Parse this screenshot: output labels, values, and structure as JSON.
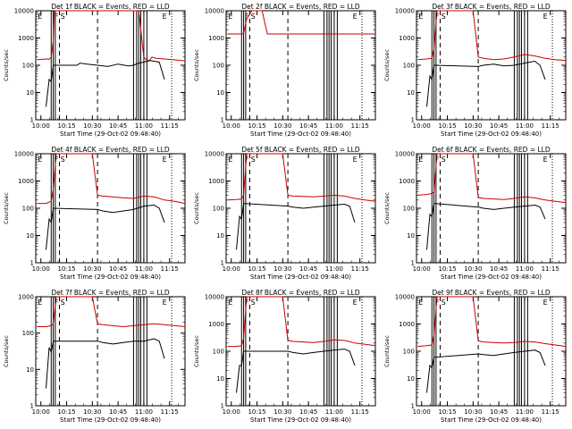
{
  "chart_data": [
    {
      "type": "line",
      "title": "Det 1f BLACK = Events, RED = LLD",
      "xlabel": "Start Time (29-Oct-02 09:48:40)",
      "ylabel": "Counts/sec",
      "yscale": "log",
      "ylim": [
        1,
        10000
      ],
      "xlim": [
        9.95,
        11.4
      ],
      "x_ticks": [
        "10:00",
        "10:15",
        "10:30",
        "10:45",
        "11:00",
        "11:15"
      ],
      "y_ticks": [
        "1",
        "10",
        "100",
        "1000",
        "10000"
      ],
      "text_marks": [
        "E",
        "F",
        "S"
      ],
      "series": [
        {
          "color": "#cc0000",
          "x": [
            9.96,
            10.05,
            10.08,
            10.1,
            10.12,
            10.13,
            10.16,
            10.2,
            10.24,
            10.28,
            10.35,
            10.45,
            10.55,
            10.65,
            10.75,
            10.85,
            10.95,
            11.0,
            11.03,
            11.05,
            11.08,
            11.12,
            11.2,
            11.28,
            11.36,
            11.4
          ],
          "y": [
            160,
            170,
            165,
            200,
            800,
            10000,
            10000,
            10000,
            10000,
            10000,
            10000,
            10000,
            10000,
            10000,
            10000,
            10000,
            10000,
            200,
            150,
            140,
            200,
            180,
            170,
            160,
            150,
            145
          ]
        },
        {
          "color": "#000000",
          "x": [
            10.05,
            10.08,
            10.1,
            10.12,
            10.35,
            10.38,
            10.45,
            10.55,
            10.65,
            10.75,
            10.85,
            10.9,
            10.95,
            11.0,
            11.05,
            11.1,
            11.15,
            11.2
          ],
          "y": [
            3,
            30,
            25,
            100,
            100,
            120,
            110,
            100,
            90,
            110,
            95,
            100,
            120,
            130,
            150,
            140,
            130,
            30
          ]
        }
      ]
    },
    {
      "type": "line",
      "title": "Det 2f BLACK = Events, RED = LLD",
      "xlabel": "Start Time (29-Oct-02 09:48:40)",
      "ylabel": "Counts/sec",
      "yscale": "log",
      "ylim": [
        1,
        10000
      ],
      "xlim": [
        9.95,
        11.4
      ],
      "x_ticks": [
        "10:00",
        "10:15",
        "10:30",
        "10:45",
        "11:00",
        "11:15"
      ],
      "y_ticks": [
        "1",
        "10",
        "100",
        "1000",
        "10000"
      ],
      "text_marks": [
        "E",
        "F",
        "S"
      ],
      "series": [
        {
          "color": "#cc0000",
          "x": [
            9.96,
            10.05,
            10.1,
            10.12,
            10.15,
            10.2,
            10.25,
            10.3,
            10.35,
            10.4,
            10.5,
            10.6,
            10.7,
            10.8,
            10.9,
            11.0,
            11.1,
            11.2,
            11.3,
            11.4
          ],
          "y": [
            1400,
            1400,
            1400,
            1500,
            5000,
            10000,
            10000,
            10000,
            1400,
            1400,
            1400,
            1400,
            1400,
            1400,
            1400,
            1400,
            1400,
            1400,
            1400,
            1400
          ]
        }
      ]
    },
    {
      "type": "line",
      "title": "Det 3f BLACK = Events, RED = LLD",
      "xlabel": "Start Time (29-Oct-02 09:48:40)",
      "ylabel": "Counts/sec",
      "yscale": "log",
      "ylim": [
        1,
        10000
      ],
      "xlim": [
        9.95,
        11.4
      ],
      "x_ticks": [
        "10:00",
        "10:15",
        "10:30",
        "10:45",
        "11:00",
        "11:15"
      ],
      "y_ticks": [
        "1",
        "10",
        "100",
        "1000",
        "10000"
      ],
      "text_marks": [
        "E",
        "F",
        "S"
      ],
      "series": [
        {
          "color": "#cc0000",
          "x": [
            9.96,
            10.05,
            10.1,
            10.12,
            10.15,
            10.2,
            10.3,
            10.4,
            10.5,
            10.55,
            10.6,
            10.7,
            10.8,
            10.9,
            11.0,
            11.1,
            11.2,
            11.3,
            11.4
          ],
          "y": [
            160,
            170,
            180,
            400,
            10000,
            10000,
            10000,
            10000,
            10000,
            200,
            180,
            160,
            170,
            200,
            250,
            220,
            180,
            160,
            150
          ]
        },
        {
          "color": "#000000",
          "x": [
            10.05,
            10.08,
            10.1,
            10.12,
            10.55,
            10.6,
            10.7,
            10.8,
            10.9,
            11.0,
            11.1,
            11.15,
            11.2
          ],
          "y": [
            3,
            40,
            30,
            100,
            90,
            100,
            110,
            95,
            100,
            120,
            140,
            100,
            30
          ]
        }
      ]
    },
    {
      "type": "line",
      "title": "Det 4f BLACK = Events, RED = LLD",
      "xlabel": "Start Time (29-Oct-02 09:48:40)",
      "ylabel": "Counts/sec",
      "yscale": "log",
      "ylim": [
        1,
        10000
      ],
      "xlim": [
        9.95,
        11.4
      ],
      "x_ticks": [
        "10:00",
        "10:15",
        "10:30",
        "10:45",
        "11:00",
        "11:15"
      ],
      "y_ticks": [
        "1",
        "10",
        "100",
        "1000",
        "10000"
      ],
      "text_marks": [
        "E",
        "F",
        "S"
      ],
      "series": [
        {
          "color": "#cc0000",
          "x": [
            9.96,
            10.05,
            10.1,
            10.12,
            10.15,
            10.2,
            10.3,
            10.4,
            10.5,
            10.55,
            10.6,
            10.7,
            10.8,
            10.9,
            11.0,
            11.1,
            11.2,
            11.3,
            11.4
          ],
          "y": [
            150,
            150,
            180,
            500,
            10000,
            10000,
            10000,
            10000,
            10000,
            300,
            280,
            260,
            240,
            230,
            280,
            260,
            200,
            180,
            150
          ]
        },
        {
          "color": "#000000",
          "x": [
            10.05,
            10.08,
            10.1,
            10.12,
            10.55,
            10.6,
            10.7,
            10.8,
            10.9,
            11.0,
            11.1,
            11.15,
            11.2
          ],
          "y": [
            3,
            40,
            30,
            100,
            90,
            80,
            70,
            80,
            90,
            120,
            130,
            100,
            30
          ]
        }
      ]
    },
    {
      "type": "line",
      "title": "Det 5f BLACK = Events, RED = LLD",
      "xlabel": "Start Time (29-Oct-02 09:48:40)",
      "ylabel": "Counts/sec",
      "yscale": "log",
      "ylim": [
        1,
        10000
      ],
      "xlim": [
        9.95,
        11.4
      ],
      "x_ticks": [
        "10:00",
        "10:15",
        "10:30",
        "10:45",
        "11:00",
        "11:15"
      ],
      "y_ticks": [
        "1",
        "10",
        "100",
        "1000",
        "10000"
      ],
      "text_marks": [
        "E",
        "F",
        "S"
      ],
      "series": [
        {
          "color": "#cc0000",
          "x": [
            9.96,
            10.05,
            10.1,
            10.12,
            10.15,
            10.2,
            10.3,
            10.4,
            10.5,
            10.55,
            10.6,
            10.7,
            10.8,
            10.9,
            11.0,
            11.1,
            11.2,
            11.3,
            11.4
          ],
          "y": [
            200,
            210,
            220,
            300,
            10000,
            10000,
            10000,
            10000,
            10000,
            300,
            280,
            270,
            260,
            280,
            300,
            280,
            230,
            200,
            180
          ]
        },
        {
          "color": "#000000",
          "x": [
            10.05,
            10.08,
            10.1,
            10.12,
            10.55,
            10.6,
            10.7,
            10.8,
            10.9,
            11.0,
            11.1,
            11.15,
            11.2
          ],
          "y": [
            3,
            50,
            40,
            150,
            120,
            110,
            100,
            110,
            120,
            130,
            140,
            120,
            30
          ]
        }
      ]
    },
    {
      "type": "line",
      "title": "Det 6f BLACK = Events, RED = LLD",
      "xlabel": "Start Time (29-Oct-02 09:48:40)",
      "ylabel": "Counts/sec",
      "yscale": "log",
      "ylim": [
        1,
        10000
      ],
      "xlim": [
        9.95,
        11.4
      ],
      "x_ticks": [
        "10:00",
        "10:15",
        "10:30",
        "10:45",
        "11:00",
        "11:15"
      ],
      "y_ticks": [
        "1",
        "10",
        "100",
        "1000",
        "10000"
      ],
      "text_marks": [
        "E",
        "F",
        "S"
      ],
      "series": [
        {
          "color": "#cc0000",
          "x": [
            9.96,
            10.05,
            10.1,
            10.12,
            10.15,
            10.2,
            10.3,
            10.4,
            10.5,
            10.55,
            10.6,
            10.7,
            10.8,
            10.9,
            11.0,
            11.1,
            11.2,
            11.3,
            11.4
          ],
          "y": [
            300,
            320,
            350,
            400,
            10000,
            10000,
            10000,
            10000,
            10000,
            250,
            230,
            220,
            210,
            230,
            260,
            240,
            200,
            180,
            160
          ]
        },
        {
          "color": "#000000",
          "x": [
            10.05,
            10.08,
            10.1,
            10.12,
            10.55,
            10.6,
            10.7,
            10.8,
            10.9,
            11.0,
            11.1,
            11.15,
            11.2
          ],
          "y": [
            3,
            60,
            50,
            150,
            110,
            100,
            90,
            100,
            110,
            120,
            130,
            110,
            40
          ]
        }
      ]
    },
    {
      "type": "line",
      "title": "Det 7f BLACK = Events, RED = LLD",
      "xlabel": "Start Time (29-Oct-02 09:48:40)",
      "ylabel": "Counts/sec",
      "yscale": "log",
      "ylim": [
        1,
        1000
      ],
      "xlim": [
        9.95,
        11.4
      ],
      "x_ticks": [
        "10:00",
        "10:15",
        "10:30",
        "10:45",
        "11:00",
        "11:15"
      ],
      "y_ticks": [
        "1",
        "10",
        "100",
        "1000"
      ],
      "text_marks": [
        "E",
        "F",
        "S"
      ],
      "series": [
        {
          "color": "#cc0000",
          "x": [
            9.96,
            10.05,
            10.1,
            10.12,
            10.15,
            10.2,
            10.3,
            10.4,
            10.5,
            10.55,
            10.6,
            10.7,
            10.8,
            10.9,
            11.0,
            11.1,
            11.2,
            11.3,
            11.4
          ],
          "y": [
            150,
            150,
            160,
            180,
            1000,
            1000,
            1000,
            1000,
            1000,
            180,
            170,
            160,
            150,
            160,
            170,
            180,
            170,
            160,
            150
          ]
        },
        {
          "color": "#000000",
          "x": [
            10.05,
            10.08,
            10.1,
            10.12,
            10.55,
            10.6,
            10.7,
            10.8,
            10.9,
            11.0,
            11.1,
            11.15,
            11.2
          ],
          "y": [
            3,
            40,
            30,
            60,
            60,
            55,
            50,
            55,
            60,
            60,
            70,
            60,
            20
          ]
        }
      ]
    },
    {
      "type": "line",
      "title": "Det 8f BLACK = Events, RED = LLD",
      "xlabel": "Start Time (29-Oct-02 09:48:40)",
      "ylabel": "Counts/sec",
      "yscale": "log",
      "ylim": [
        1,
        10000
      ],
      "xlim": [
        9.95,
        11.4
      ],
      "x_ticks": [
        "10:00",
        "10:15",
        "10:30",
        "10:45",
        "11:00",
        "11:15"
      ],
      "y_ticks": [
        "1",
        "10",
        "100",
        "1000",
        "10000"
      ],
      "text_marks": [
        "E",
        "F",
        "S"
      ],
      "series": [
        {
          "color": "#cc0000",
          "x": [
            9.96,
            10.05,
            10.1,
            10.12,
            10.15,
            10.2,
            10.3,
            10.4,
            10.5,
            10.55,
            10.6,
            10.7,
            10.8,
            10.9,
            11.0,
            11.1,
            11.2,
            11.3,
            11.4
          ],
          "y": [
            150,
            150,
            160,
            300,
            10000,
            10000,
            10000,
            10000,
            10000,
            250,
            230,
            220,
            210,
            230,
            260,
            250,
            200,
            180,
            160
          ]
        },
        {
          "color": "#000000",
          "x": [
            10.05,
            10.08,
            10.1,
            10.12,
            10.55,
            10.6,
            10.7,
            10.8,
            10.9,
            11.0,
            11.1,
            11.15,
            11.2
          ],
          "y": [
            3,
            30,
            30,
            100,
            100,
            90,
            80,
            90,
            100,
            110,
            120,
            100,
            30
          ]
        }
      ]
    },
    {
      "type": "line",
      "title": "Det 9f BLACK = Events, RED = LLD",
      "xlabel": "Start Time (29-Oct-02 09:48:40)",
      "ylabel": "Counts/sec",
      "yscale": "log",
      "ylim": [
        1,
        10000
      ],
      "xlim": [
        9.95,
        11.4
      ],
      "x_ticks": [
        "10:00",
        "10:15",
        "10:30",
        "10:45",
        "11:00",
        "11:15"
      ],
      "y_ticks": [
        "1",
        "10",
        "100",
        "1000",
        "10000"
      ],
      "text_marks": [
        "E",
        "F",
        "S"
      ],
      "series": [
        {
          "color": "#cc0000",
          "x": [
            9.96,
            10.05,
            10.1,
            10.12,
            10.15,
            10.2,
            10.3,
            10.4,
            10.5,
            10.55,
            10.6,
            10.7,
            10.8,
            10.9,
            11.0,
            11.1,
            11.2,
            11.3,
            11.4
          ],
          "y": [
            150,
            160,
            170,
            400,
            10000,
            10000,
            10000,
            10000,
            10000,
            240,
            220,
            210,
            200,
            210,
            230,
            220,
            190,
            170,
            150
          ]
        },
        {
          "color": "#000000",
          "x": [
            10.05,
            10.08,
            10.1,
            10.12,
            10.55,
            10.6,
            10.7,
            10.8,
            10.9,
            11.0,
            11.1,
            11.15,
            11.2
          ],
          "y": [
            3,
            30,
            25,
            60,
            80,
            75,
            70,
            80,
            90,
            100,
            110,
            90,
            30
          ]
        }
      ]
    }
  ]
}
